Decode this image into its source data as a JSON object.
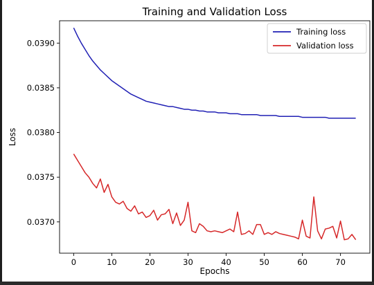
{
  "chart_data": {
    "type": "line",
    "title": "Training and Validation Loss",
    "xlabel": "Epochs",
    "ylabel": "Loss",
    "xlim": [
      -3.7,
      77.7
    ],
    "ylim": [
      0.03665,
      0.03925
    ],
    "xticks": [
      0,
      10,
      20,
      30,
      40,
      50,
      60,
      70
    ],
    "yticks": [
      0.037,
      0.0375,
      0.038,
      0.0385,
      0.039
    ],
    "ytick_labels": [
      "0.0370",
      "0.0375",
      "0.0380",
      "0.0385",
      "0.0390"
    ],
    "grid": false,
    "legend_position": "top-right",
    "series": [
      {
        "name": "Training loss",
        "color": "#1f1fb4",
        "x": [
          0,
          1,
          2,
          3,
          4,
          5,
          6,
          7,
          8,
          9,
          10,
          11,
          12,
          13,
          14,
          15,
          16,
          17,
          18,
          19,
          20,
          21,
          22,
          23,
          24,
          25,
          26,
          27,
          28,
          29,
          30,
          31,
          32,
          33,
          34,
          35,
          36,
          37,
          38,
          39,
          40,
          41,
          42,
          43,
          44,
          45,
          46,
          47,
          48,
          49,
          50,
          51,
          52,
          53,
          54,
          55,
          56,
          57,
          58,
          59,
          60,
          61,
          62,
          63,
          64,
          65,
          66,
          67,
          68,
          69,
          70,
          71,
          72,
          73,
          74
        ],
        "y": [
          0.03917,
          0.03908,
          0.039,
          0.03893,
          0.03886,
          0.0388,
          0.03875,
          0.0387,
          0.03866,
          0.03862,
          0.03858,
          0.03855,
          0.03852,
          0.03849,
          0.03846,
          0.03843,
          0.03841,
          0.03839,
          0.03837,
          0.03835,
          0.03834,
          0.03833,
          0.03832,
          0.03831,
          0.0383,
          0.03829,
          0.03829,
          0.03828,
          0.03827,
          0.03826,
          0.03826,
          0.03825,
          0.03825,
          0.03824,
          0.03824,
          0.03823,
          0.03823,
          0.03823,
          0.03822,
          0.03822,
          0.03822,
          0.03821,
          0.03821,
          0.03821,
          0.0382,
          0.0382,
          0.0382,
          0.0382,
          0.0382,
          0.03819,
          0.03819,
          0.03819,
          0.03819,
          0.03819,
          0.03818,
          0.03818,
          0.03818,
          0.03818,
          0.03818,
          0.03818,
          0.03817,
          0.03817,
          0.03817,
          0.03817,
          0.03817,
          0.03817,
          0.03817,
          0.03816,
          0.03816,
          0.03816,
          0.03816,
          0.03816,
          0.03816,
          0.03816,
          0.03816
        ]
      },
      {
        "name": "Validation loss",
        "color": "#d62728",
        "x": [
          0,
          1,
          2,
          3,
          4,
          5,
          6,
          7,
          8,
          9,
          10,
          11,
          12,
          13,
          14,
          15,
          16,
          17,
          18,
          19,
          20,
          21,
          22,
          23,
          24,
          25,
          26,
          27,
          28,
          29,
          30,
          31,
          32,
          33,
          34,
          35,
          36,
          37,
          38,
          39,
          40,
          41,
          42,
          43,
          44,
          45,
          46,
          47,
          48,
          49,
          50,
          51,
          52,
          53,
          54,
          55,
          56,
          57,
          58,
          59,
          60,
          61,
          62,
          63,
          64,
          65,
          66,
          67,
          68,
          69,
          70,
          71,
          72,
          73,
          74
        ],
        "y": [
          0.03776,
          0.03769,
          0.03762,
          0.03755,
          0.0375,
          0.03743,
          0.03738,
          0.03748,
          0.03733,
          0.03742,
          0.03728,
          0.03722,
          0.0372,
          0.03723,
          0.03715,
          0.03712,
          0.03718,
          0.03709,
          0.03711,
          0.03705,
          0.03707,
          0.03713,
          0.03702,
          0.03708,
          0.03709,
          0.03714,
          0.03698,
          0.0371,
          0.03696,
          0.03702,
          0.03722,
          0.0369,
          0.03688,
          0.03698,
          0.03695,
          0.0369,
          0.03689,
          0.0369,
          0.03689,
          0.03688,
          0.0369,
          0.03692,
          0.03689,
          0.03711,
          0.03686,
          0.03687,
          0.0369,
          0.03686,
          0.03697,
          0.03697,
          0.03686,
          0.03688,
          0.03686,
          0.03689,
          0.03687,
          0.03686,
          0.03685,
          0.03684,
          0.03683,
          0.03681,
          0.03702,
          0.03684,
          0.03682,
          0.03728,
          0.0369,
          0.03681,
          0.03692,
          0.03693,
          0.03695,
          0.03682,
          0.03701,
          0.0368,
          0.03681,
          0.03686,
          0.0368
        ]
      }
    ]
  }
}
